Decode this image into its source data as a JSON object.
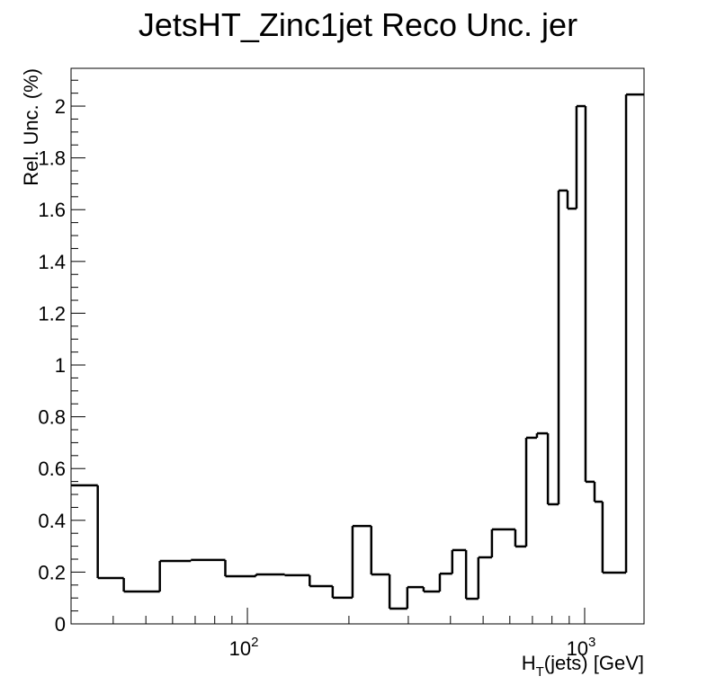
{
  "chart_data": {
    "type": "histogram",
    "title": "JetsHT_Zinc1jet Reco Unc. jer",
    "ylabel": "Rel. Unc. (%)",
    "xlabel": {
      "main": "H",
      "sub": "T",
      "rest": "(jets) [GeV]"
    },
    "xscale": "log",
    "color": "#000000",
    "bins": [
      30,
      36,
      43,
      55,
      68,
      86,
      106,
      129,
      153,
      179,
      205,
      233,
      264,
      298,
      333,
      372,
      405,
      445,
      484,
      531,
      623,
      671,
      722,
      778,
      837,
      890,
      946,
      1006,
      1070,
      1130,
      1327,
      1500
    ],
    "values": [
      0.535,
      0.177,
      0.125,
      0.243,
      0.247,
      0.184,
      0.191,
      0.188,
      0.146,
      0.101,
      0.378,
      0.191,
      0.059,
      0.142,
      0.125,
      0.194,
      0.285,
      0.097,
      0.257,
      0.365,
      0.299,
      0.719,
      0.736,
      0.462,
      1.674,
      1.604,
      2.0,
      0.549,
      0.472,
      0.198,
      2.045
    ],
    "xlim": [
      30,
      1500
    ],
    "ylim": [
      0,
      2.146
    ],
    "xticks": [
      {
        "value": 100,
        "label": "10",
        "exponent": "2"
      },
      {
        "value": 1000,
        "label": "10",
        "exponent": "3"
      }
    ],
    "xminorticks": [
      40,
      50,
      60,
      70,
      80,
      90,
      200,
      300,
      400,
      500,
      600,
      700,
      800,
      900
    ],
    "yticks": [
      0,
      0.2,
      0.4,
      0.6,
      0.8,
      1,
      1.2,
      1.4,
      1.6,
      1.8,
      2
    ],
    "yminorticks": [
      0.05,
      0.1,
      0.15,
      0.25,
      0.3,
      0.35,
      0.45,
      0.5,
      0.55,
      0.65,
      0.7,
      0.75,
      0.85,
      0.9,
      0.95,
      1.05,
      1.1,
      1.15,
      1.25,
      1.3,
      1.35,
      1.45,
      1.5,
      1.55,
      1.65,
      1.7,
      1.75,
      1.85,
      1.9,
      1.95,
      2.05,
      2.1
    ]
  }
}
